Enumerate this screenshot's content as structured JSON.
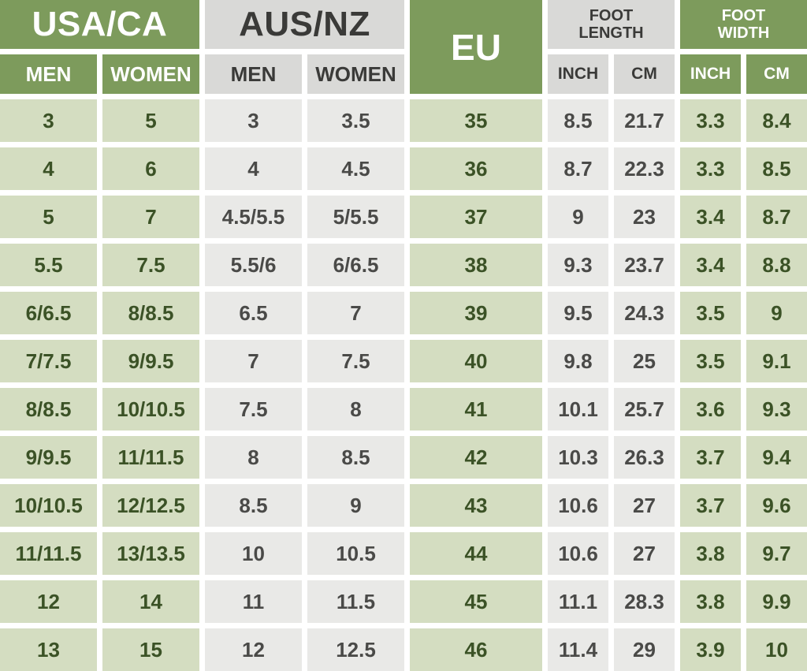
{
  "colors": {
    "header_green": "#7d9b5c",
    "header_gray": "#d9d9d7",
    "light_green": "#d4ddc1",
    "light_gray": "#e9e9e7",
    "text_green": "#3b5226",
    "text_gray": "#4a4a48",
    "header_text_dark": "#3a3a38",
    "header_text_light": "#ffffff",
    "gap_white": "#ffffff"
  },
  "table": {
    "groups": {
      "usa_ca": "USA/CA",
      "aus_nz": "AUS/NZ",
      "eu": "EU",
      "foot_length": "FOOT LENGTH",
      "foot_width": "FOOT WIDTH"
    },
    "subheaders": {
      "men": "MEN",
      "women": "WOMEN",
      "inch": "INCH",
      "cm": "CM"
    }
  },
  "chart_data": {
    "type": "table",
    "columns": [
      "USA/CA MEN",
      "USA/CA WOMEN",
      "AUS/NZ MEN",
      "AUS/NZ WOMEN",
      "EU",
      "FOOT LENGTH INCH",
      "FOOT LENGTH CM",
      "FOOT WIDTH INCH",
      "FOOT WIDTH CM"
    ],
    "rows": [
      [
        "3",
        "5",
        "3",
        "3.5",
        "35",
        "8.5",
        "21.7",
        "3.3",
        "8.4"
      ],
      [
        "4",
        "6",
        "4",
        "4.5",
        "36",
        "8.7",
        "22.3",
        "3.3",
        "8.5"
      ],
      [
        "5",
        "7",
        "4.5/5.5",
        "5/5.5",
        "37",
        "9",
        "23",
        "3.4",
        "8.7"
      ],
      [
        "5.5",
        "7.5",
        "5.5/6",
        "6/6.5",
        "38",
        "9.3",
        "23.7",
        "3.4",
        "8.8"
      ],
      [
        "6/6.5",
        "8/8.5",
        "6.5",
        "7",
        "39",
        "9.5",
        "24.3",
        "3.5",
        "9"
      ],
      [
        "7/7.5",
        "9/9.5",
        "7",
        "7.5",
        "40",
        "9.8",
        "25",
        "3.5",
        "9.1"
      ],
      [
        "8/8.5",
        "10/10.5",
        "7.5",
        "8",
        "41",
        "10.1",
        "25.7",
        "3.6",
        "9.3"
      ],
      [
        "9/9.5",
        "11/11.5",
        "8",
        "8.5",
        "42",
        "10.3",
        "26.3",
        "3.7",
        "9.4"
      ],
      [
        "10/10.5",
        "12/12.5",
        "8.5",
        "9",
        "43",
        "10.6",
        "27",
        "3.7",
        "9.6"
      ],
      [
        "11/11.5",
        "13/13.5",
        "10",
        "10.5",
        "44",
        "10.6",
        "27",
        "3.8",
        "9.7"
      ],
      [
        "12",
        "14",
        "11",
        "11.5",
        "45",
        "11.1",
        "28.3",
        "3.8",
        "9.9"
      ],
      [
        "13",
        "15",
        "12",
        "12.5",
        "46",
        "11.4",
        "29",
        "3.9",
        "10"
      ]
    ]
  }
}
